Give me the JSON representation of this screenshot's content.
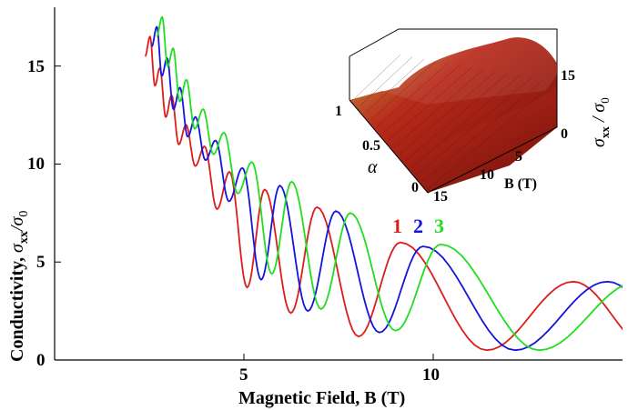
{
  "chart_data": {
    "type": "line",
    "xlabel_main": "Magnetic Field, B (T)",
    "ylabel_main": "Conductivity, ",
    "ylabel_symbol": "σ",
    "ylabel_sub": "xx",
    "ylabel_over": "/σ",
    "ylabel_sub0": "0",
    "xlim": [
      0,
      15
    ],
    "ylim": [
      0,
      18
    ],
    "xticks": [
      "5",
      "10"
    ],
    "yticks": [
      "0",
      "5",
      "10",
      "15"
    ],
    "grid": false,
    "series": [
      {
        "name": "1",
        "color": "#dd1c1c",
        "peaks_x": [
          2.52,
          2.78,
          3.09,
          3.47,
          3.96,
          4.62,
          5.55,
          6.93,
          9.13,
          13.7
        ],
        "peaks_y": [
          16.5,
          14.9,
          13.5,
          12.0,
          10.9,
          9.6,
          8.7,
          7.8,
          6.0,
          4.0
        ],
        "valleys_y": [
          15.5,
          14.0,
          12.4,
          11.0,
          9.9,
          7.7,
          3.7,
          2.4,
          1.2,
          0.5,
          0.55
        ]
      },
      {
        "name": "2",
        "color": "#1414dd",
        "peaks_x": [
          2.7,
          2.97,
          3.31,
          3.72,
          4.25,
          4.96,
          5.95,
          7.43,
          9.73,
          14.6
        ],
        "peaks_y": [
          17.0,
          15.4,
          13.9,
          12.4,
          11.2,
          9.8,
          8.9,
          7.6,
          5.8,
          4.0
        ],
        "valleys_y": [
          16.0,
          14.5,
          12.8,
          11.4,
          10.2,
          8.1,
          4.1,
          2.5,
          1.4,
          0.5,
          0.55
        ]
      },
      {
        "name": "3",
        "color": "#22dd22",
        "peaks_x": [
          2.84,
          3.13,
          3.48,
          3.92,
          4.47,
          5.21,
          6.26,
          7.81,
          10.2,
          15.4
        ],
        "peaks_y": [
          17.5,
          15.9,
          14.3,
          12.8,
          11.6,
          10.1,
          9.1,
          7.5,
          5.9,
          4.0
        ],
        "valleys_y": [
          16.5,
          15.0,
          13.2,
          11.8,
          10.5,
          8.5,
          4.4,
          2.6,
          1.5,
          0.5,
          0.55
        ]
      }
    ],
    "inset": {
      "type": "surface3d",
      "zlabel_symbol": "σ",
      "zlabel_sub": "xx",
      "zlabel_over": " / σ",
      "zlabel_sub0": "0",
      "alpha_label": "α",
      "b_label": "B (T)",
      "alpha_ticks": [
        "1",
        "0.5",
        "0"
      ],
      "b_ticks": [
        "15",
        "10",
        "5"
      ],
      "z_ticks": [
        "15",
        "0"
      ],
      "surface_color": "#b8291a"
    }
  }
}
